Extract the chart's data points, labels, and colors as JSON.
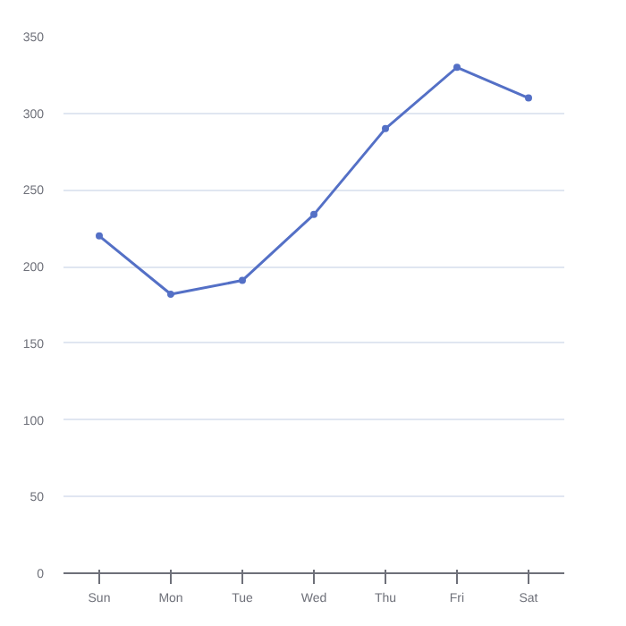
{
  "chart_data": {
    "type": "line",
    "categories": [
      "Sun",
      "Mon",
      "Tue",
      "Wed",
      "Thu",
      "Fri",
      "Sat"
    ],
    "series": [
      {
        "color": "#5470c6",
        "values": [
          220,
          182,
          191,
          234,
          290,
          330,
          310
        ]
      }
    ],
    "ylim": [
      0,
      350
    ],
    "yticks": [
      0,
      50,
      100,
      150,
      200,
      250,
      300,
      350
    ],
    "grid": "y",
    "marker": "circle"
  }
}
